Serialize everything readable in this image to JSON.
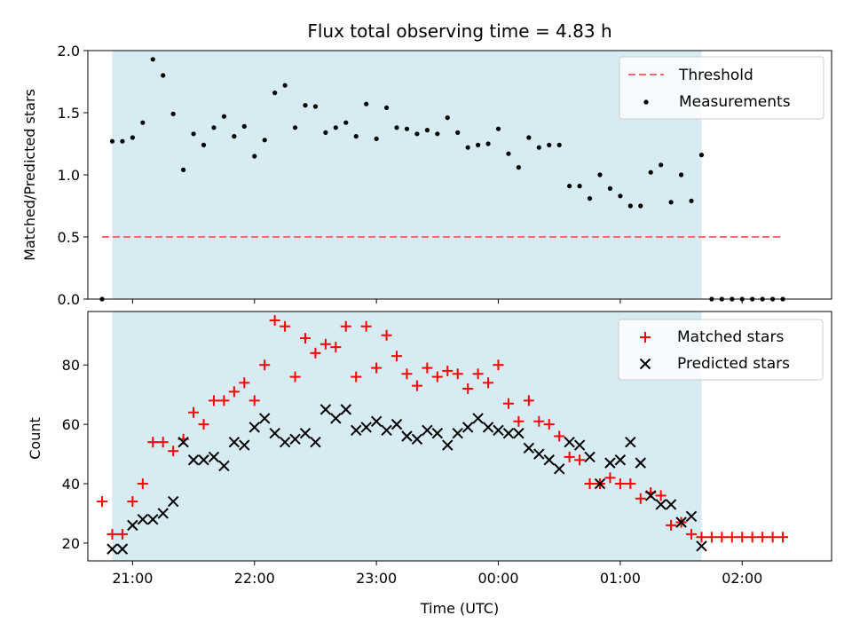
{
  "chart_data": {
    "title": "Flux total observing time = 4.83 h",
    "xlabel": "Time (UTC)",
    "x_ticks": [
      "21:00",
      "22:00",
      "23:00",
      "00:00",
      "01:00",
      "02:00"
    ],
    "x_range": [
      "20:38",
      "02:44"
    ],
    "shaded_interval": {
      "start": "20:50",
      "end": "01:40",
      "color": "#add8e6"
    },
    "top_panel": {
      "type": "scatter",
      "ylabel": "Matched/Predicted stars",
      "ylim": [
        0,
        2.0
      ],
      "y_ticks": [
        "0.0",
        "0.5",
        "1.0",
        "1.5",
        "2.0"
      ],
      "legend_placement": "upper-right",
      "threshold": {
        "name": "Threshold",
        "value": 0.5,
        "x_start": "20:45",
        "x_end": "02:20",
        "color": "#ff6b6b",
        "style": "dashed"
      },
      "series": [
        {
          "name": "Measurements",
          "color": "#000000",
          "points": [
            [
              "20:45",
              0.0
            ],
            [
              "20:50",
              1.27
            ],
            [
              "20:55",
              1.27
            ],
            [
              "21:00",
              1.3
            ],
            [
              "21:05",
              1.42
            ],
            [
              "21:10",
              1.93
            ],
            [
              "21:15",
              1.8
            ],
            [
              "21:20",
              1.49
            ],
            [
              "21:25",
              1.04
            ],
            [
              "21:30",
              1.33
            ],
            [
              "21:35",
              1.24
            ],
            [
              "21:40",
              1.38
            ],
            [
              "21:45",
              1.47
            ],
            [
              "21:50",
              1.31
            ],
            [
              "21:55",
              1.39
            ],
            [
              "22:00",
              1.15
            ],
            [
              "22:05",
              1.28
            ],
            [
              "22:10",
              1.66
            ],
            [
              "22:15",
              1.72
            ],
            [
              "22:20",
              1.38
            ],
            [
              "22:25",
              1.56
            ],
            [
              "22:30",
              1.55
            ],
            [
              "22:35",
              1.34
            ],
            [
              "22:40",
              1.38
            ],
            [
              "22:45",
              1.42
            ],
            [
              "22:50",
              1.31
            ],
            [
              "22:55",
              1.57
            ],
            [
              "23:00",
              1.29
            ],
            [
              "23:05",
              1.54
            ],
            [
              "23:10",
              1.38
            ],
            [
              "23:15",
              1.37
            ],
            [
              "23:20",
              1.33
            ],
            [
              "23:25",
              1.36
            ],
            [
              "23:30",
              1.33
            ],
            [
              "23:35",
              1.46
            ],
            [
              "23:40",
              1.34
            ],
            [
              "23:45",
              1.22
            ],
            [
              "23:50",
              1.24
            ],
            [
              "23:55",
              1.25
            ],
            [
              "00:00",
              1.37
            ],
            [
              "00:05",
              1.17
            ],
            [
              "00:10",
              1.06
            ],
            [
              "00:15",
              1.3
            ],
            [
              "00:20",
              1.22
            ],
            [
              "00:25",
              1.24
            ],
            [
              "00:30",
              1.24
            ],
            [
              "00:35",
              0.91
            ],
            [
              "00:40",
              0.91
            ],
            [
              "00:45",
              0.81
            ],
            [
              "00:50",
              1.0
            ],
            [
              "00:55",
              0.89
            ],
            [
              "01:00",
              0.83
            ],
            [
              "01:05",
              0.75
            ],
            [
              "01:10",
              0.75
            ],
            [
              "01:15",
              1.02
            ],
            [
              "01:20",
              1.08
            ],
            [
              "01:25",
              0.78
            ],
            [
              "01:30",
              1.0
            ],
            [
              "01:35",
              0.79
            ],
            [
              "01:40",
              1.16
            ],
            [
              "01:45",
              0.0
            ],
            [
              "01:50",
              0.0
            ],
            [
              "01:55",
              0.0
            ],
            [
              "02:00",
              0.0
            ],
            [
              "02:05",
              0.0
            ],
            [
              "02:10",
              0.0
            ],
            [
              "02:15",
              0.0
            ],
            [
              "02:20",
              0.0
            ]
          ]
        }
      ]
    },
    "bottom_panel": {
      "type": "scatter",
      "ylabel": "Count",
      "ylim": [
        14,
        98
      ],
      "y_ticks": [
        "20",
        "40",
        "60",
        "80"
      ],
      "legend_placement": "upper-right",
      "series": [
        {
          "name": "Matched stars",
          "color": "#ff0000",
          "marker": "plus",
          "points": [
            [
              "20:45",
              34
            ],
            [
              "20:50",
              23
            ],
            [
              "20:55",
              23
            ],
            [
              "21:00",
              34
            ],
            [
              "21:05",
              40
            ],
            [
              "21:10",
              54
            ],
            [
              "21:15",
              54
            ],
            [
              "21:20",
              51
            ],
            [
              "21:25",
              55
            ],
            [
              "21:30",
              64
            ],
            [
              "21:35",
              60
            ],
            [
              "21:40",
              68
            ],
            [
              "21:45",
              68
            ],
            [
              "21:50",
              71
            ],
            [
              "21:55",
              74
            ],
            [
              "22:00",
              68
            ],
            [
              "22:05",
              80
            ],
            [
              "22:10",
              95
            ],
            [
              "22:15",
              93
            ],
            [
              "22:20",
              76
            ],
            [
              "22:25",
              89
            ],
            [
              "22:30",
              84
            ],
            [
              "22:35",
              87
            ],
            [
              "22:40",
              86
            ],
            [
              "22:45",
              93
            ],
            [
              "22:50",
              76
            ],
            [
              "22:55",
              93
            ],
            [
              "23:00",
              79
            ],
            [
              "23:05",
              90
            ],
            [
              "23:10",
              83
            ],
            [
              "23:15",
              77
            ],
            [
              "23:20",
              73
            ],
            [
              "23:25",
              79
            ],
            [
              "23:30",
              76
            ],
            [
              "23:35",
              78
            ],
            [
              "23:40",
              77
            ],
            [
              "23:45",
              72
            ],
            [
              "23:50",
              77
            ],
            [
              "23:55",
              74
            ],
            [
              "00:00",
              80
            ],
            [
              "00:05",
              67
            ],
            [
              "00:10",
              61
            ],
            [
              "00:15",
              68
            ],
            [
              "00:20",
              61
            ],
            [
              "00:25",
              60
            ],
            [
              "00:30",
              56
            ],
            [
              "00:35",
              49
            ],
            [
              "00:40",
              48
            ],
            [
              "00:45",
              40
            ],
            [
              "00:50",
              40
            ],
            [
              "00:55",
              42
            ],
            [
              "01:00",
              40
            ],
            [
              "01:05",
              40
            ],
            [
              "01:10",
              35
            ],
            [
              "01:15",
              37
            ],
            [
              "01:20",
              36
            ],
            [
              "01:25",
              26
            ],
            [
              "01:30",
              27
            ],
            [
              "01:35",
              23
            ],
            [
              "01:40",
              22
            ],
            [
              "01:45",
              22
            ],
            [
              "01:50",
              22
            ],
            [
              "01:55",
              22
            ],
            [
              "02:00",
              22
            ],
            [
              "02:05",
              22
            ],
            [
              "02:10",
              22
            ],
            [
              "02:15",
              22
            ],
            [
              "02:20",
              22
            ]
          ]
        },
        {
          "name": "Predicted stars",
          "color": "#000000",
          "marker": "x",
          "points": [
            [
              "20:50",
              18
            ],
            [
              "20:55",
              18
            ],
            [
              "21:00",
              26
            ],
            [
              "21:05",
              28
            ],
            [
              "21:10",
              28
            ],
            [
              "21:15",
              30
            ],
            [
              "21:20",
              34
            ],
            [
              "21:25",
              54
            ],
            [
              "21:30",
              48
            ],
            [
              "21:35",
              48
            ],
            [
              "21:40",
              49
            ],
            [
              "21:45",
              46
            ],
            [
              "21:50",
              54
            ],
            [
              "21:55",
              53
            ],
            [
              "22:00",
              59
            ],
            [
              "22:05",
              62
            ],
            [
              "22:10",
              57
            ],
            [
              "22:15",
              54
            ],
            [
              "22:20",
              55
            ],
            [
              "22:25",
              57
            ],
            [
              "22:30",
              54
            ],
            [
              "22:35",
              65
            ],
            [
              "22:40",
              62
            ],
            [
              "22:45",
              65
            ],
            [
              "22:50",
              58
            ],
            [
              "22:55",
              59
            ],
            [
              "23:00",
              61
            ],
            [
              "23:05",
              58
            ],
            [
              "23:10",
              60
            ],
            [
              "23:15",
              56
            ],
            [
              "23:20",
              55
            ],
            [
              "23:25",
              58
            ],
            [
              "23:30",
              57
            ],
            [
              "23:35",
              53
            ],
            [
              "23:40",
              57
            ],
            [
              "23:45",
              59
            ],
            [
              "23:50",
              62
            ],
            [
              "23:55",
              59
            ],
            [
              "00:00",
              58
            ],
            [
              "00:05",
              57
            ],
            [
              "00:10",
              57
            ],
            [
              "00:15",
              52
            ],
            [
              "00:20",
              50
            ],
            [
              "00:25",
              48
            ],
            [
              "00:30",
              45
            ],
            [
              "00:35",
              54
            ],
            [
              "00:40",
              53
            ],
            [
              "00:45",
              49
            ],
            [
              "00:50",
              40
            ],
            [
              "00:55",
              47
            ],
            [
              "01:00",
              48
            ],
            [
              "01:05",
              54
            ],
            [
              "01:10",
              47
            ],
            [
              "01:15",
              36
            ],
            [
              "01:20",
              33
            ],
            [
              "01:25",
              33
            ],
            [
              "01:30",
              27
            ],
            [
              "01:35",
              29
            ],
            [
              "01:40",
              19
            ]
          ]
        }
      ]
    }
  }
}
